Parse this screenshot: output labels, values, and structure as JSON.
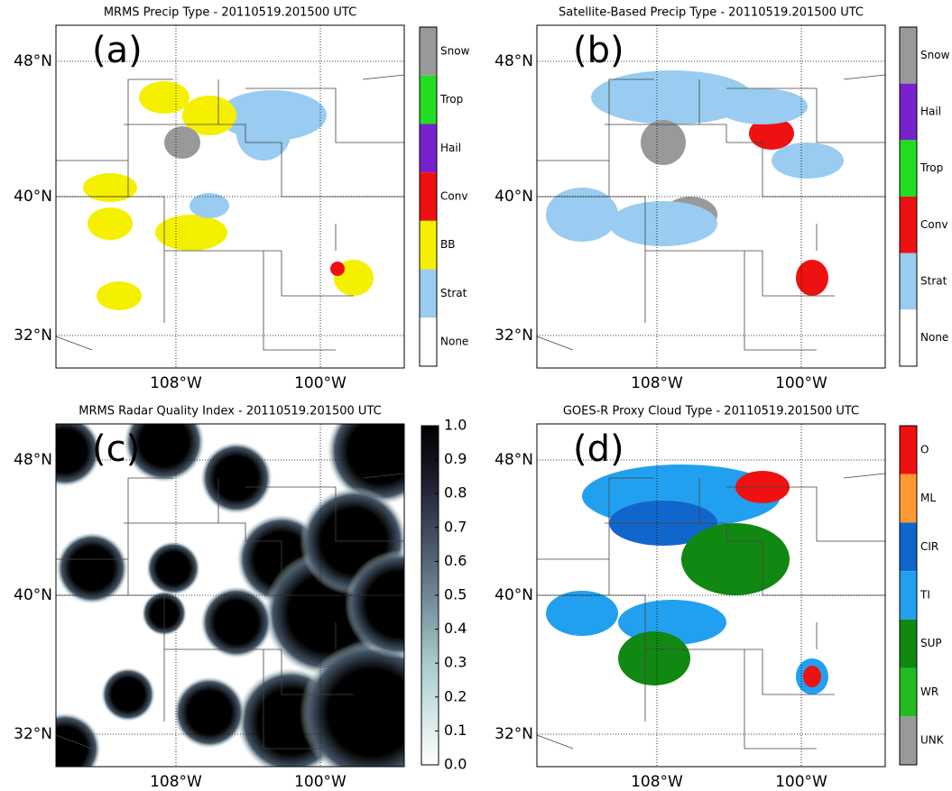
{
  "panels": [
    {
      "title": "MRMS Precip Type - 20110519.201500 UTC",
      "label": "(a)",
      "lat_labels": [
        "48°N",
        "40°N",
        "32°N"
      ],
      "lon_labels": [
        "108°W",
        "100°W"
      ],
      "colorbar": {
        "categories": [
          "Snow",
          "Trop",
          "Hail",
          "Conv",
          "BB",
          "Strat",
          "None"
        ],
        "colors": [
          "#999999",
          "#22dd22",
          "#7722cc",
          "#ee1111",
          "#f5f000",
          "#99ccf0",
          "#ffffff"
        ]
      }
    },
    {
      "title": "Satellite-Based Precip Type - 20110519.201500 UTC",
      "label": "(b)",
      "lat_labels": [
        "48°N",
        "40°N",
        "32°N"
      ],
      "lon_labels": [
        "108°W",
        "100°W"
      ],
      "colorbar": {
        "categories": [
          "Snow",
          "Hail",
          "Trop",
          "Conv",
          "Strat",
          "None"
        ],
        "colors": [
          "#999999",
          "#7722cc",
          "#22dd22",
          "#ee1111",
          "#99ccf0",
          "#ffffff"
        ]
      }
    },
    {
      "title": "MRMS Radar Quality Index - 20110519.201500 UTC",
      "label": "(c)",
      "lat_labels": [
        "48°N",
        "40°N",
        "32°N"
      ],
      "lon_labels": [
        "108°W",
        "100°W"
      ],
      "colorbar": {
        "range": [
          0,
          1
        ],
        "ticks": [
          {
            "value": 0,
            "label": "0.0"
          },
          {
            "value": 0.1,
            "label": "0.1"
          },
          {
            "value": 0.2,
            "label": "0.2"
          },
          {
            "value": 0.3,
            "label": "0.3"
          },
          {
            "value": 0.4,
            "label": "0.4"
          },
          {
            "value": 0.5,
            "label": "0.5"
          },
          {
            "value": 0.6,
            "label": "0.6"
          },
          {
            "value": 0.7,
            "label": "0.7"
          },
          {
            "value": 0.8,
            "label": "0.8"
          },
          {
            "value": 0.9,
            "label": "0.9"
          },
          {
            "value": 1,
            "label": "1.0"
          }
        ]
      }
    },
    {
      "title": "GOES-R Proxy Cloud Type - 20110519.201500 UTC",
      "label": "(d)",
      "lat_labels": [
        "48°N",
        "40°N",
        "32°N"
      ],
      "lon_labels": [
        "108°W",
        "100°W"
      ],
      "colorbar": {
        "categories": [
          "O",
          "ML",
          "CIR",
          "TI",
          "SUP",
          "WR",
          "UNK"
        ],
        "colors": [
          "#ee1111",
          "#ff9933",
          "#1166cc",
          "#22a0f0",
          "#118811",
          "#22bb22",
          "#999999"
        ]
      }
    }
  ]
}
